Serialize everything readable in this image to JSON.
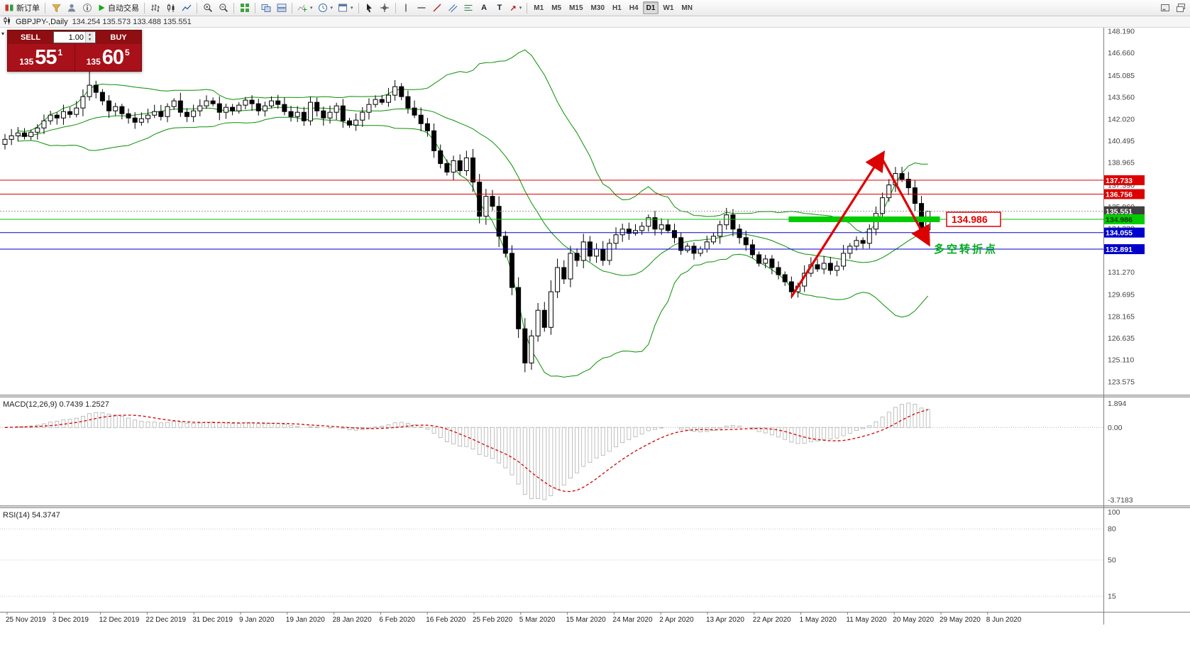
{
  "toolbar": {
    "new_order_label": "新订单",
    "auto_trading_label": "自动交易",
    "timeframes": [
      "M1",
      "M5",
      "M15",
      "M30",
      "H1",
      "H4",
      "D1",
      "W1",
      "MN"
    ],
    "active_timeframe": "D1"
  },
  "icons": {
    "caret": "▾",
    "spin_up": "▴",
    "spin_down": "▾",
    "collapse": "▾",
    "text_tool": "A",
    "label_tool": "T",
    "arrow_tool": "↗"
  },
  "symbol_bar": {
    "title": "GBPJPY-,Daily",
    "ohlc": "134.254 135.573 133.488 135.551"
  },
  "trade_panel": {
    "sell_label": "SELL",
    "buy_label": "BUY",
    "volume": "1.00",
    "sell": {
      "prefix": "135",
      "big": "55",
      "sup": "1"
    },
    "buy": {
      "prefix": "135",
      "big": "60",
      "sup": "5"
    }
  },
  "colors": {
    "bull_candle": "#ffffff",
    "bear_candle": "#000000",
    "bands": "#089000",
    "red_line": "#dd0000",
    "blue_line": "#0000cc",
    "green_line": "#00c000",
    "macd_signal": "#d40000",
    "rsi_line": "#3b77d0",
    "panel_red": "#a8111a"
  },
  "chart_data": {
    "type": "candlestick",
    "symbol": "GBPJPY-",
    "period": "Daily",
    "ohlc_current": {
      "open": 134.254,
      "high": 135.573,
      "low": 133.488,
      "close": 135.551
    },
    "closes": [
      140.6,
      140.85,
      141.05,
      140.8,
      141.1,
      141.4,
      141.9,
      142.3,
      142.1,
      142.55,
      142.35,
      142.8,
      143.6,
      144.4,
      143.9,
      143.3,
      142.6,
      142.9,
      142.4,
      142.1,
      141.8,
      142.05,
      142.3,
      142.55,
      142.2,
      142.9,
      143.3,
      142.5,
      142.2,
      142.6,
      142.95,
      143.3,
      143.1,
      142.5,
      142.85,
      142.6,
      143.0,
      143.35,
      143.1,
      142.6,
      142.95,
      143.3,
      143.05,
      142.55,
      142.2,
      142.5,
      141.9,
      143.2,
      142.6,
      142.1,
      142.5,
      142.95,
      141.9,
      141.6,
      141.95,
      142.5,
      143.05,
      143.4,
      143.2,
      143.7,
      144.3,
      143.6,
      142.8,
      142.3,
      141.7,
      141.2,
      139.8,
      138.9,
      138.3,
      139.1,
      138.4,
      139.3,
      137.6,
      135.2,
      136.6,
      135.9,
      133.8,
      132.6,
      130.2,
      127.3,
      124.9,
      126.8,
      128.6,
      127.4,
      129.9,
      131.6,
      130.8,
      132.6,
      132.1,
      133.4,
      132.4,
      132.9,
      132.1,
      133.3,
      133.9,
      134.3,
      134.0,
      134.2,
      134.5,
      135.1,
      134.3,
      134.6,
      134.2,
      133.7,
      132.8,
      133.1,
      132.6,
      132.9,
      133.4,
      133.8,
      134.6,
      135.3,
      134.3,
      133.7,
      133.2,
      132.5,
      131.9,
      132.2,
      131.6,
      131.1,
      130.6,
      129.9,
      130.3,
      131.2,
      131.8,
      131.5,
      131.9,
      131.4,
      131.7,
      132.6,
      133.1,
      133.5,
      133.3,
      134.3,
      135.4,
      136.5,
      137.4,
      138.2,
      137.8,
      137.2,
      136.1,
      134.25,
      135.551
    ],
    "overrides": {
      "13": {
        "h": 145.45
      },
      "80": {
        "l": 124.25
      },
      "142": {
        "o": 134.254,
        "h": 135.573,
        "l": 133.488,
        "c": 135.551
      }
    },
    "price_axis_ticks": [
      "148.190",
      "146.660",
      "145.085",
      "143.560",
      "142.020",
      "140.495",
      "138.965",
      "137.390",
      "135.860",
      "134.330",
      "132.800",
      "131.270",
      "129.695",
      "128.165",
      "126.635",
      "125.110",
      "123.575"
    ],
    "hlines": [
      {
        "value": 137.733,
        "color": "#dd0000",
        "style": "solid",
        "tag": "137.733",
        "tag_bg": "#dd0000",
        "tag_fg": "#ffffff"
      },
      {
        "value": 136.756,
        "color": "#dd0000",
        "style": "solid",
        "tag": "136.756",
        "tag_bg": "#dd0000",
        "tag_fg": "#ffffff"
      },
      {
        "value": 135.551,
        "color": "#999999",
        "style": "dot",
        "tag": "135.551",
        "tag_bg": "#404040",
        "tag_fg": "#ffffff"
      },
      {
        "value": 134.986,
        "color": "#00c000",
        "style": "solid",
        "tag": "134.986",
        "tag_bg": "#00cc00",
        "tag_fg": "#003300"
      },
      {
        "value": 134.055,
        "color": "#0000cc",
        "style": "solid",
        "tag": "134.055",
        "tag_bg": "#0000cc",
        "tag_fg": "#ffffff"
      },
      {
        "value": 132.891,
        "color": "#0000cc",
        "style": "solid",
        "tag": "132.891",
        "tag_bg": "#0000cc",
        "tag_fg": "#ffffff"
      }
    ],
    "green_zone": {
      "value": 134.986,
      "from_index": 121,
      "to_index": 143.5,
      "color": "#00cc00",
      "label": "134.986",
      "label_color": "#dd0000"
    },
    "trend_arrows": [
      {
        "from_index": 121,
        "from_price": 129.55,
        "to_index": 135,
        "to_price": 139.55,
        "color": "#dd0000"
      },
      {
        "from_index": 135,
        "from_price": 139.2,
        "to_index": 142,
        "to_price": 133.35,
        "color": "#dd0000"
      }
    ],
    "annotation": {
      "text": "多空转折点",
      "color": "#00aa22"
    },
    "indicators": {
      "bollinger": {
        "period": 20,
        "deviation": 2,
        "color": "#089000"
      },
      "macd": {
        "label": "MACD(12,26,9)",
        "values_text": "0.7439 1.2527",
        "axis_labels": [
          "1.894",
          "0.00",
          "-3.7183"
        ],
        "signal_color": "#d40000",
        "histogram_color": "#b0b0b0"
      },
      "rsi": {
        "label": "RSI(14)",
        "value_text": "54.3747",
        "axis_labels": [
          "100",
          "80",
          "50",
          "15"
        ],
        "levels": [
          80,
          50,
          15
        ],
        "color": "#3b77d0"
      }
    },
    "dates": [
      "25 Nov 2019",
      "3 Dec 2019",
      "12 Dec 2019",
      "22 Dec 2019",
      "31 Dec 2019",
      "9 Jan 2020",
      "19 Jan 2020",
      "28 Jan 2020",
      "6 Feb 2020",
      "16 Feb 2020",
      "25 Feb 2020",
      "5 Mar 2020",
      "15 Mar 2020",
      "24 Mar 2020",
      "2 Apr 2020",
      "13 Apr 2020",
      "22 Apr 2020",
      "1 May 2020",
      "11 May 2020",
      "20 May 2020",
      "29 May 2020",
      "8 Jun 2020"
    ]
  }
}
